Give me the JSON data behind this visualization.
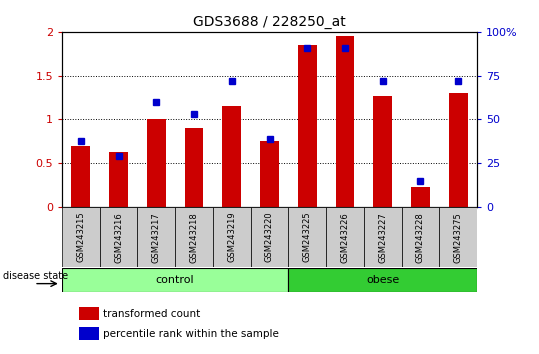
{
  "title": "GDS3688 / 228250_at",
  "samples": [
    "GSM243215",
    "GSM243216",
    "GSM243217",
    "GSM243218",
    "GSM243219",
    "GSM243220",
    "GSM243225",
    "GSM243226",
    "GSM243227",
    "GSM243228",
    "GSM243275"
  ],
  "red_values": [
    0.7,
    0.63,
    1.0,
    0.9,
    1.15,
    0.75,
    1.85,
    1.95,
    1.27,
    0.23,
    1.3
  ],
  "blue_pct": [
    38,
    29,
    60,
    53,
    72,
    39,
    91,
    91,
    72,
    15,
    72
  ],
  "ylim_left": [
    0,
    2
  ],
  "ylim_right": [
    0,
    100
  ],
  "yticks_left": [
    0,
    0.5,
    1.0,
    1.5,
    2.0
  ],
  "ytick_labels_left": [
    "0",
    "0.5",
    "1",
    "1.5",
    "2"
  ],
  "yticks_right": [
    0,
    25,
    50,
    75,
    100
  ],
  "ytick_labels_right": [
    "0",
    "25",
    "50",
    "75",
    "100%"
  ],
  "control_indices": [
    0,
    1,
    2,
    3,
    4,
    5
  ],
  "obese_indices": [
    6,
    7,
    8,
    9,
    10
  ],
  "bar_width": 0.5,
  "red_color": "#CC0000",
  "blue_color": "#0000CC",
  "control_color": "#99FF99",
  "obese_color": "#33CC33",
  "tick_bg_color": "#CCCCCC",
  "legend_red": "transformed count",
  "legend_blue": "percentile rank within the sample",
  "disease_label": "disease state",
  "control_label": "control",
  "obese_label": "obese"
}
